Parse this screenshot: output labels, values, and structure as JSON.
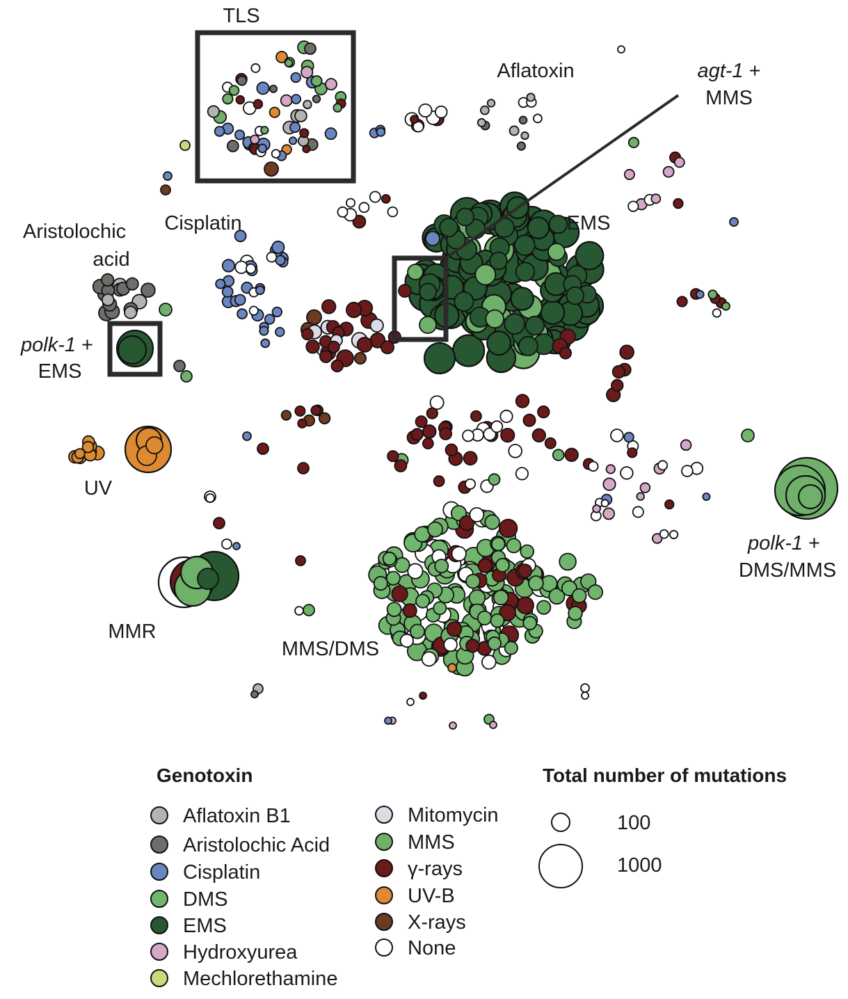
{
  "chart_data": {
    "type": "scatter",
    "legend": {
      "genotoxin_title": "Genotoxin",
      "genotoxins": [
        {
          "key": "aflatoxin",
          "label": "Aflatoxin B1",
          "color": "#b3b3b3"
        },
        {
          "key": "aristolochic",
          "label": "Aristolochic Acid",
          "color": "#6d6d6a"
        },
        {
          "key": "cisplatin",
          "label": "Cisplatin",
          "color": "#6a86c1"
        },
        {
          "key": "dms",
          "label": "DMS",
          "color": "#71b66d"
        },
        {
          "key": "ems",
          "label": "EMS",
          "color": "#275832"
        },
        {
          "key": "hydroxyurea",
          "label": "Hydroxyurea",
          "color": "#d5a8c8"
        },
        {
          "key": "mechlorethamine",
          "label": "Mechlorethamine",
          "color": "#c4dc79"
        },
        {
          "key": "mitomycin",
          "label": "Mitomycin",
          "color": "#dcdce6"
        },
        {
          "key": "mms",
          "label": "MMS",
          "color": "#6fb06b"
        },
        {
          "key": "gamma",
          "label": "γ-rays",
          "color": "#6b1a1c"
        },
        {
          "key": "uvb",
          "label": "UV-B",
          "color": "#dd8a33"
        },
        {
          "key": "xrays",
          "label": "X-rays",
          "color": "#6e3a21"
        },
        {
          "key": "none",
          "label": "None",
          "color": "#ffffff"
        }
      ],
      "size_title": "Total number of mutations",
      "sizes": [
        {
          "label": "100",
          "value": 100
        },
        {
          "label": "1000",
          "value": 1000
        }
      ]
    },
    "annotations": {
      "tls": "TLS",
      "aflatoxin": "Aflatoxin",
      "agt1_gene": "agt-1",
      "agt1_rest": " +",
      "agt1_line2": "MMS",
      "ems": "EMS",
      "cisplatin": "Cisplatin",
      "aristolochic_line1": "Aristolochic",
      "aristolochic_line2": "acid",
      "polk_ems_gene": "polk-1",
      "polk_ems_rest": " +",
      "polk_ems_line2": "EMS",
      "uv": "UV",
      "mmr": "MMR",
      "mmsdms": "MMS/DMS",
      "polk_dms_gene": "polk-1",
      "polk_dms_rest": " +",
      "polk_dms_line2": "DMS/MMS"
    }
  }
}
